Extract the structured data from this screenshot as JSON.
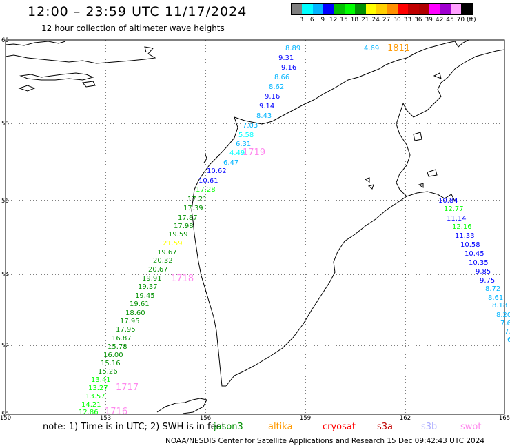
{
  "header": {
    "title": "12:00 – 23:59 UTC 11/17/2024",
    "subtitle": "12 hour collection of altimeter wave heights"
  },
  "colorbar": {
    "colors": [
      "#7f7f7f",
      "#00ffff",
      "#00b4ff",
      "#0000ff",
      "#00c000",
      "#00ff00",
      "#009000",
      "#ffff00",
      "#ffd000",
      "#ff9000",
      "#ff0000",
      "#c00000",
      "#b00000",
      "#ff00ff",
      "#a000d0",
      "#ffa0ff",
      "#000000"
    ],
    "labels": [
      "3",
      "6",
      "9",
      "12",
      "15",
      "18",
      "21",
      "24",
      "27",
      "30",
      "33",
      "36",
      "39",
      "42",
      "45",
      "70",
      "(ft)"
    ]
  },
  "map": {
    "lat_ticks": [
      "60",
      "58",
      "56",
      "54",
      "52",
      "50"
    ],
    "lon_ticks": [
      "150",
      "153",
      "156",
      "159",
      "162",
      "165"
    ],
    "tracks": [
      {
        "label": "1811",
        "label_color": "#ff9900",
        "points": [
          {
            "v": "4.69",
            "c": "#00b4ff"
          },
          {
            "v": "8.89",
            "c": "#00b4ff"
          },
          {
            "v": "9.31",
            "c": "#0000ff"
          },
          {
            "v": "9.16",
            "c": "#0000ff"
          },
          {
            "v": "8.66",
            "c": "#00b4ff"
          },
          {
            "v": "8.62",
            "c": "#00b4ff"
          },
          {
            "v": "9.16",
            "c": "#0000ff"
          },
          {
            "v": "9.14",
            "c": "#0000ff"
          },
          {
            "v": "8.43",
            "c": "#00b4ff"
          },
          {
            "v": "7.03",
            "c": "#00b4ff"
          },
          {
            "v": "5.58",
            "c": "#00ffff"
          },
          {
            "v": "6.31",
            "c": "#00b4ff"
          },
          {
            "v": "4.49",
            "c": "#00ffff"
          },
          {
            "v": "6.47",
            "c": "#00b4ff"
          },
          {
            "v": "10.62",
            "c": "#0000ff"
          },
          {
            "v": "10.61",
            "c": "#0000ff"
          }
        ]
      },
      {
        "label": "1719",
        "label_color": "#ff88ee",
        "points": []
      },
      {
        "label": "1718",
        "label_color": "#ff88ee",
        "points": [
          {
            "v": "17.28",
            "c": "#00ff00"
          },
          {
            "v": "17.21",
            "c": "#009000"
          },
          {
            "v": "17.39",
            "c": "#009000"
          },
          {
            "v": "17.87",
            "c": "#009000"
          },
          {
            "v": "17.98",
            "c": "#009000"
          },
          {
            "v": "19.59",
            "c": "#009000"
          },
          {
            "v": "21.59",
            "c": "#ffff00"
          },
          {
            "v": "19.67",
            "c": "#009000"
          },
          {
            "v": "20.32",
            "c": "#009000"
          },
          {
            "v": "20.67",
            "c": "#009000"
          },
          {
            "v": "19.91",
            "c": "#009000"
          },
          {
            "v": "19.37",
            "c": "#009000"
          },
          {
            "v": "19.45",
            "c": "#009000"
          },
          {
            "v": "19.61",
            "c": "#009000"
          },
          {
            "v": "18.60",
            "c": "#009000"
          },
          {
            "v": "17.95",
            "c": "#009000"
          },
          {
            "v": "17.95",
            "c": "#009000"
          },
          {
            "v": "16.87",
            "c": "#009000"
          },
          {
            "v": "15.78",
            "c": "#009000"
          },
          {
            "v": "16.00",
            "c": "#009000"
          },
          {
            "v": "15.16",
            "c": "#009000"
          },
          {
            "v": "15.26",
            "c": "#009000"
          },
          {
            "v": "13.41",
            "c": "#00ff00"
          },
          {
            "v": "13.27",
            "c": "#00ff00"
          },
          {
            "v": "13.57",
            "c": "#00ff00"
          },
          {
            "v": "14.21",
            "c": "#00ff00"
          },
          {
            "v": "12.86",
            "c": "#00ff00"
          }
        ]
      },
      {
        "label": "1717",
        "label_color": "#ff88ee",
        "points": []
      },
      {
        "label": "1716",
        "label_color": "#ff88ee",
        "points": []
      },
      {
        "label": "",
        "label_color": "",
        "points": [
          {
            "v": "10.84",
            "c": "#0000ff"
          },
          {
            "v": "12.77",
            "c": "#00ff00"
          },
          {
            "v": "11.14",
            "c": "#0000ff"
          },
          {
            "v": "12.16",
            "c": "#00ff00"
          },
          {
            "v": "11.33",
            "c": "#0000ff"
          },
          {
            "v": "10.58",
            "c": "#0000ff"
          },
          {
            "v": "10.45",
            "c": "#0000ff"
          },
          {
            "v": "10.35",
            "c": "#0000ff"
          },
          {
            "v": "9.85",
            "c": "#0000ff"
          },
          {
            "v": "9.75",
            "c": "#0000ff"
          },
          {
            "v": "8.72",
            "c": "#00b4ff"
          },
          {
            "v": "8.61",
            "c": "#00b4ff"
          },
          {
            "v": "8.18",
            "c": "#00b4ff"
          },
          {
            "v": "8.20",
            "c": "#00b4ff"
          },
          {
            "v": "7.6",
            "c": "#00b4ff"
          },
          {
            "v": "7.",
            "c": "#00b4ff"
          },
          {
            "v": "6",
            "c": "#00b4ff"
          }
        ]
      }
    ]
  },
  "footer": {
    "note": "note:  1) Time is in UTC;  2) SWH is in feet",
    "satellites": [
      {
        "name": "jason3",
        "color": "#009000"
      },
      {
        "name": "altika",
        "color": "#ff9900"
      },
      {
        "name": "cryosat",
        "color": "#ff0000"
      },
      {
        "name": "s3a",
        "color": "#c00000"
      },
      {
        "name": "s3b",
        "color": "#aaaaff"
      },
      {
        "name": "swot",
        "color": "#ff88ee"
      }
    ],
    "credit": "NOAA/NESDIS Center for Satellite Applications and Research     15 Dec 09:42:43 UTC 2024"
  }
}
